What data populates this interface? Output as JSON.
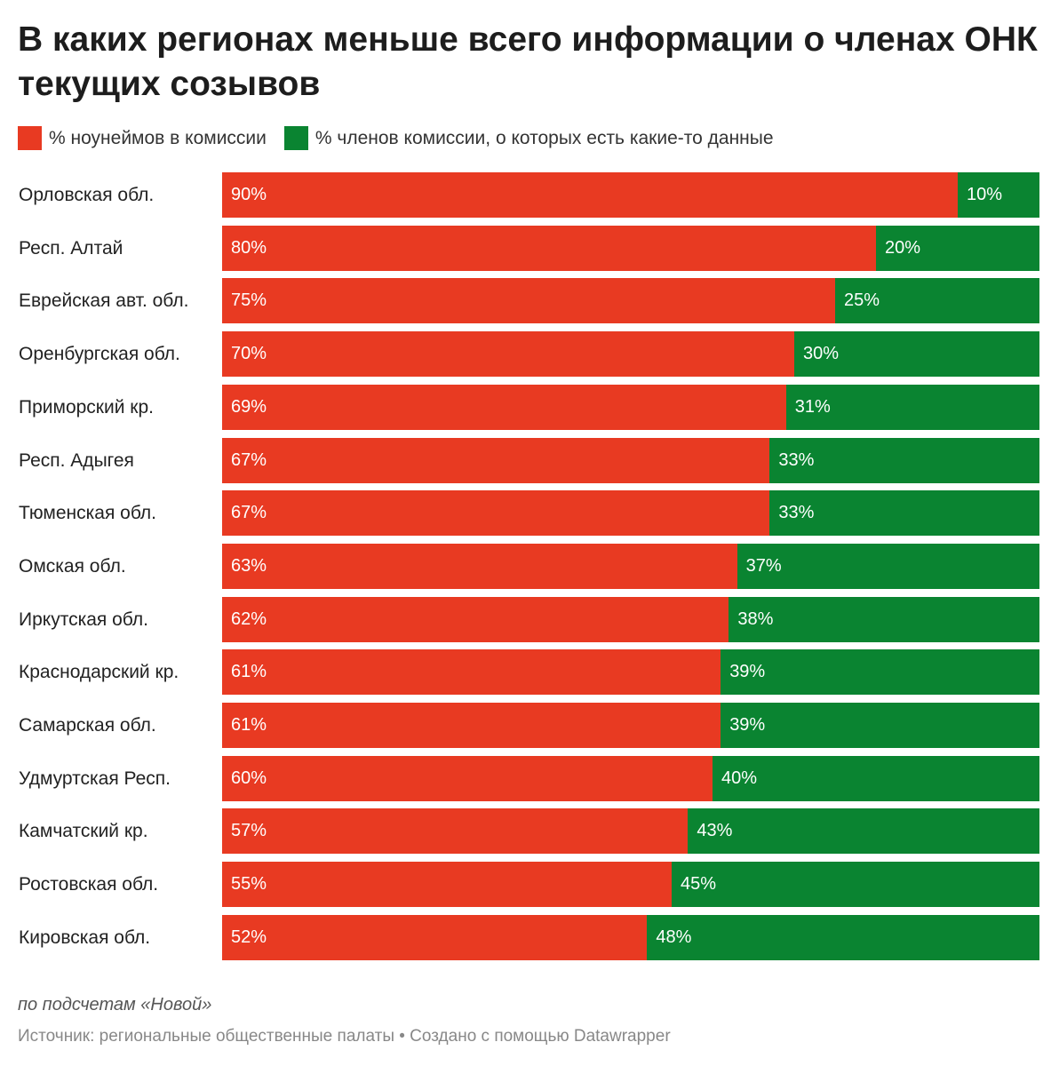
{
  "chart_data": {
    "type": "bar",
    "stacked": true,
    "orientation": "horizontal",
    "title": "В каких регионах меньше всего информации о членах ОНК текущих созывов",
    "legend": [
      {
        "label": "% ноунеймов в комиссии",
        "color": "#e83a22"
      },
      {
        "label": "% членов комиссии, о которых есть какие-то данные",
        "color": "#0a8431"
      }
    ],
    "legend_placement": "top-left",
    "categories": [
      "Орловская обл.",
      "Респ. Алтай",
      "Еврейская авт. обл.",
      "Оренбургская обл.",
      "Приморский кр.",
      "Респ. Адыгея",
      "Тюменская обл.",
      "Омская обл.",
      "Иркутская обл.",
      "Краснодарский кр.",
      "Самарская обл.",
      "Удмуртская Респ.",
      "Камчатский кр.",
      "Ростовская обл.",
      "Кировская обл."
    ],
    "series": [
      {
        "name": "% ноунеймов в комиссии",
        "values": [
          90,
          80,
          75,
          70,
          69,
          67,
          67,
          63,
          62,
          61,
          61,
          60,
          57,
          55,
          52
        ]
      },
      {
        "name": "% членов комиссии, о которых есть какие-то данные",
        "values": [
          10,
          20,
          25,
          30,
          31,
          33,
          33,
          37,
          38,
          39,
          39,
          40,
          43,
          45,
          48
        ]
      }
    ],
    "xlim": [
      0,
      100
    ],
    "grid": false
  },
  "footer": {
    "note": "по подсчетам «Новой»",
    "source": "Источник: региональные общественные палаты • Создано с помощью Datawrapper"
  }
}
